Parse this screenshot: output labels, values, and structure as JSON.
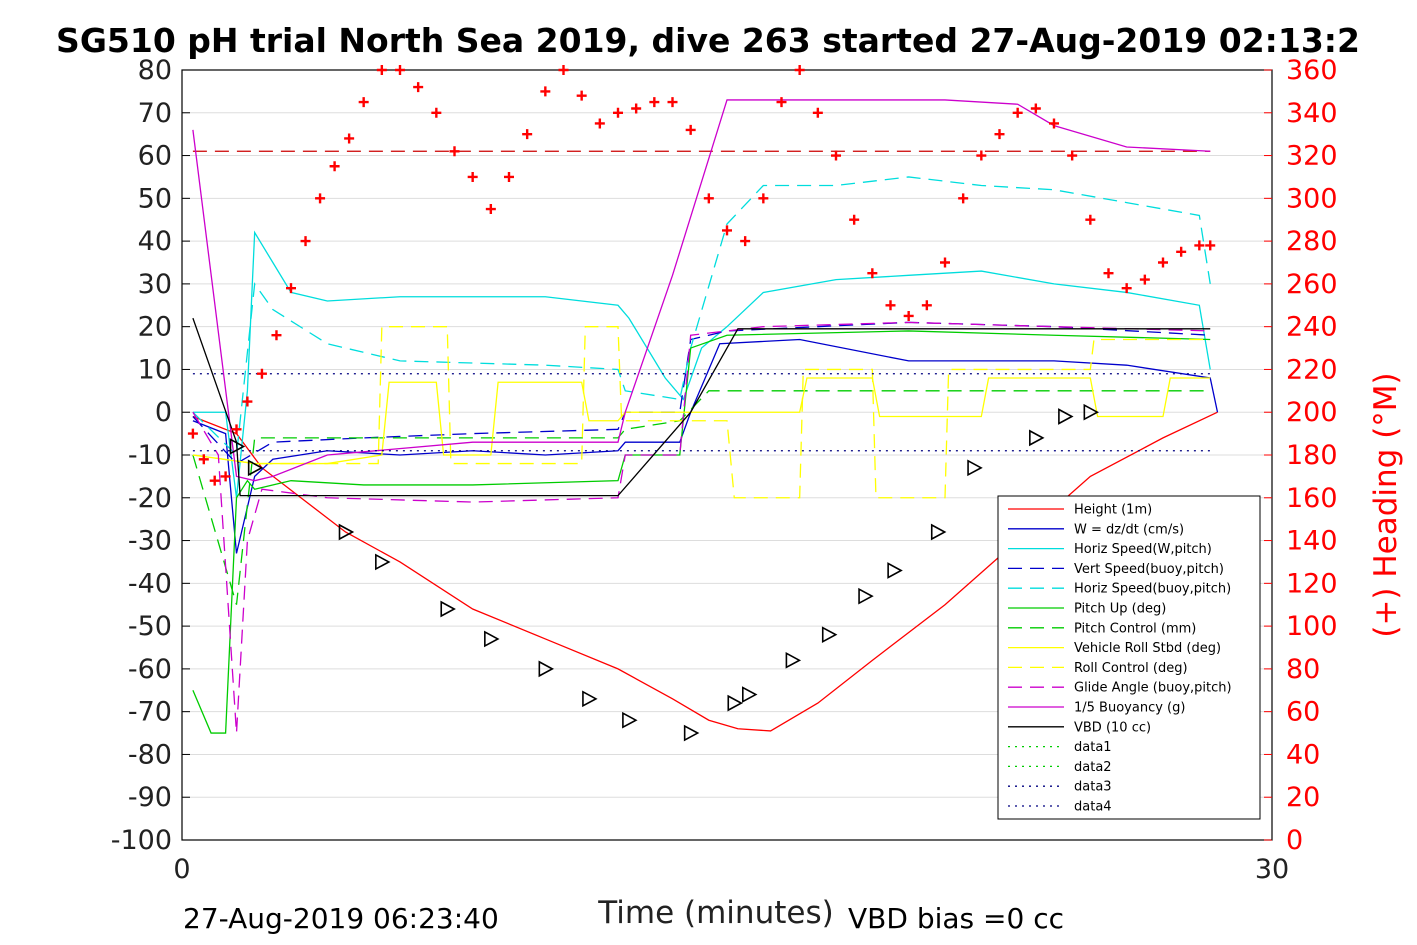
{
  "chart_data": {
    "type": "line",
    "title": "SG510 pH trial North Sea 2019, dive 263 started 27-Aug-2019 02:13:2",
    "xlabel": "Time (minutes)",
    "ylabel_right": "(+) Heading (°M)",
    "xlim": [
      0,
      30
    ],
    "ylim": [
      -100,
      80
    ],
    "ylim_right": [
      0,
      360
    ],
    "x_ticks": [
      "0",
      "30"
    ],
    "y_ticks": [
      "80",
      "70",
      "60",
      "50",
      "40",
      "30",
      "20",
      "10",
      "0",
      "-10",
      "-20",
      "-30",
      "-40",
      "-50",
      "-60",
      "-70",
      "-80",
      "-90",
      "-100"
    ],
    "y_ticks_right": [
      "360",
      "340",
      "320",
      "300",
      "280",
      "260",
      "240",
      "220",
      "200",
      "180",
      "160",
      "140",
      "120",
      "100",
      "80",
      "60",
      "40",
      "20",
      "0"
    ],
    "grid": "horizontal",
    "legend_position": "bottom-right",
    "footer_left": "27-Aug-2019 06:23:40",
    "footer_right": "VBD bias =0 cc",
    "heading_marker_color": "#ff0000",
    "series": [
      {
        "name": "Height (1m)",
        "color": "#ff0000",
        "dash": "solid",
        "x": [
          0.3,
          1.5,
          2.2,
          4.5,
          6,
          8,
          10,
          12,
          13.5,
          14.5,
          15.3,
          16.2,
          17.5,
          19,
          21,
          23,
          25,
          27,
          28.5
        ],
        "y": [
          -1,
          -5,
          -13,
          -28,
          -35,
          -46,
          -53,
          -60,
          -67,
          -72,
          -74,
          -74.5,
          -68,
          -58,
          -45,
          -30,
          -15,
          -6,
          0
        ]
      },
      {
        "name": "W = dz/dt (cm/s)",
        "color": "#0000cc",
        "dash": "solid",
        "x": [
          0.3,
          1.2,
          1.5,
          2.0,
          2.5,
          4,
          6,
          8,
          10,
          12,
          12.2,
          13.7,
          14,
          14.8,
          17,
          20,
          24,
          26,
          28.3,
          28.5
        ],
        "y": [
          -2,
          -5,
          -33,
          -15,
          -11,
          -9,
          -10,
          -9,
          -10,
          -9,
          -7,
          -7,
          0,
          16,
          17,
          12,
          12,
          11,
          8,
          0
        ]
      },
      {
        "name": "Horiz Speed(W,pitch)",
        "color": "#00dddd",
        "dash": "solid",
        "x": [
          0.3,
          1.2,
          1.5,
          1.8,
          2.0,
          2.5,
          3,
          4,
          6,
          8,
          10,
          12,
          12.3,
          13.3,
          13.8,
          14.3,
          15,
          16,
          18,
          20,
          22,
          24,
          26,
          28,
          28.3
        ],
        "y": [
          0,
          0,
          -20,
          5,
          42,
          35,
          28,
          26,
          27,
          27,
          27,
          25,
          22,
          8,
          3,
          15,
          20,
          28,
          31,
          32,
          33,
          30,
          28,
          25,
          10
        ]
      },
      {
        "name": "Vert Speed(buoy,pitch)",
        "color": "#0000cc",
        "dash": "dash",
        "x": [
          0.3,
          1.5,
          2.5,
          5,
          8,
          12,
          12.2,
          13.7,
          14,
          15,
          20,
          24,
          28.3
        ],
        "y": [
          -1,
          -12,
          -7,
          -6,
          -5,
          -4,
          0,
          0,
          17,
          19,
          21,
          20,
          18
        ]
      },
      {
        "name": "Horiz Speed(buoy,pitch)",
        "color": "#00dddd",
        "dash": "dash",
        "x": [
          0.3,
          1.5,
          2.0,
          2.5,
          4,
          6,
          10,
          12,
          12.2,
          13.7,
          14,
          15,
          16,
          18,
          20,
          22,
          24,
          26,
          28,
          28.3
        ],
        "y": [
          0,
          -10,
          30,
          24,
          16,
          12,
          11,
          10,
          5,
          3,
          15,
          44,
          53,
          53,
          55,
          53,
          52,
          49,
          46,
          30
        ]
      },
      {
        "name": "Pitch Up (deg)",
        "color": "#00cc00",
        "dash": "solid",
        "x": [
          0.3,
          0.8,
          1.2,
          1.5,
          1.8,
          2.0,
          3,
          5,
          8,
          12,
          12.2,
          13.7,
          14,
          15,
          20,
          24,
          28.3
        ],
        "y": [
          -65,
          -75,
          -75,
          -20,
          -16,
          -18,
          -16,
          -17,
          -17,
          -16,
          -10,
          -10,
          15,
          18,
          19,
          18,
          17
        ]
      },
      {
        "name": "Pitch Control (mm)",
        "color": "#00cc00",
        "dash": "dash",
        "x": [
          0.3,
          1.5,
          2,
          5,
          8,
          12,
          12.2,
          13.7,
          14.5,
          20,
          28.3
        ],
        "y": [
          -10,
          -45,
          -6,
          -6,
          -6,
          -6,
          -4,
          -2,
          5,
          5,
          5
        ]
      },
      {
        "name": "Vehicle Roll Stbd (deg)",
        "color": "#ffff00",
        "dash": "solid",
        "x": [
          0.3,
          2,
          4,
          5.5,
          5.7,
          7,
          7.2,
          8.5,
          8.7,
          11,
          11.2,
          12,
          12.2,
          15,
          17,
          17.2,
          19,
          19.2,
          22,
          22.2,
          25,
          25.2,
          27,
          27.2,
          28.3
        ],
        "y": [
          -10,
          -12,
          -12,
          -10,
          7,
          7,
          -10,
          -10,
          7,
          7,
          -2,
          -2,
          0,
          0,
          0,
          8,
          8,
          -1,
          -1,
          8,
          8,
          -1,
          -1,
          8,
          8
        ]
      },
      {
        "name": "Roll Control (deg)",
        "color": "#ffff00",
        "dash": "dash",
        "x": [
          0.3,
          2,
          5.4,
          5.5,
          7.3,
          7.4,
          11,
          11.1,
          12,
          12.1,
          15,
          15.2,
          17,
          17.1,
          19,
          19.1,
          21,
          21.1,
          25,
          25.1,
          28.3
        ],
        "y": [
          -10,
          -12,
          -12,
          20,
          20,
          -12,
          -12,
          20,
          20,
          -2,
          -2,
          -20,
          -20,
          10,
          10,
          -20,
          -20,
          10,
          10,
          17,
          17
        ]
      },
      {
        "name": "Glide Angle (buoy,pitch)",
        "color": "#cc00cc",
        "dash": "dash",
        "x": [
          0.3,
          1.0,
          1.5,
          1.8,
          2.2,
          4,
          8,
          12,
          12.2,
          13.7,
          14,
          16,
          20,
          24,
          28.3
        ],
        "y": [
          0,
          -10,
          -75,
          -30,
          -18,
          -20,
          -21,
          -20,
          -10,
          -10,
          18,
          20,
          21,
          20,
          19
        ]
      },
      {
        "name": "1/5 Buoyancy (g)",
        "color": "#cc00cc",
        "dash": "solid",
        "x": [
          0.3,
          1.5,
          2.0,
          2.5,
          4,
          8,
          12,
          12.2,
          13.5,
          15,
          15.2,
          20,
          21,
          23,
          24,
          26,
          28.3
        ],
        "y": [
          66,
          -15,
          -16,
          -15,
          -10,
          -7,
          -7,
          0,
          32,
          73,
          73,
          73,
          73,
          72,
          67,
          62,
          61
        ]
      },
      {
        "name": "VBD (10 cc)",
        "color": "#000000",
        "dash": "solid",
        "x": [
          0.3,
          1.5,
          1.6,
          12,
          14,
          15.3,
          28.3
        ],
        "y": [
          22,
          -7,
          -19.5,
          -19.5,
          0,
          19.5,
          19.5
        ]
      },
      {
        "name": "data1",
        "color": "#00cc00",
        "dash": "dot",
        "x": [],
        "y": []
      },
      {
        "name": "data2",
        "color": "#00cc00",
        "dash": "dot",
        "x": [],
        "y": []
      },
      {
        "name": "data3",
        "color": "#000080",
        "dash": "dot",
        "x": [
          0.3,
          28.3
        ],
        "y": [
          9,
          9
        ]
      },
      {
        "name": "data4",
        "color": "#000080",
        "dash": "dot",
        "x": [
          0.3,
          28.3
        ],
        "y": [
          -9,
          -9
        ]
      }
    ],
    "reference_line": {
      "color": "#cc0000",
      "dash": "dash",
      "x": [
        0.3,
        28.3
      ],
      "y": [
        61,
        61
      ]
    },
    "height_markers": {
      "x": [
        1.5,
        2.0,
        4.5,
        5.5,
        7.3,
        8.5,
        10,
        11.2,
        12.3,
        14,
        15.2,
        15.6,
        16.8,
        17.8,
        18.8,
        19.6,
        20.8,
        21.8,
        23.5,
        24.3,
        25.0
      ],
      "y": [
        -8,
        -13,
        -28,
        -35,
        -46,
        -53,
        -60,
        -67,
        -72,
        -75,
        -68,
        -66,
        -58,
        -52,
        -43,
        -37,
        -28,
        -13,
        -6,
        -1,
        0
      ]
    },
    "heading": {
      "x": [
        0.3,
        0.6,
        0.9,
        1.2,
        1.5,
        1.8,
        2.2,
        2.6,
        3.0,
        3.4,
        3.8,
        4.2,
        4.6,
        5.0,
        5.5,
        6.0,
        6.5,
        7.0,
        7.5,
        8.0,
        8.5,
        9.0,
        9.5,
        10.0,
        10.5,
        11.0,
        11.5,
        12.0,
        12.5,
        13.0,
        13.5,
        14.0,
        14.5,
        15.0,
        15.5,
        16.0,
        16.5,
        17.0,
        17.5,
        18.0,
        18.5,
        19.0,
        19.5,
        20.0,
        20.5,
        21.0,
        21.5,
        22.0,
        22.5,
        23.0,
        23.5,
        24.0,
        24.5,
        25.0,
        25.5,
        26.0,
        26.5,
        27.0,
        27.5,
        28.0,
        28.3
      ],
      "y": [
        190,
        178,
        168,
        170,
        192,
        205,
        218,
        236,
        258,
        280,
        300,
        315,
        328,
        345,
        360,
        360,
        352,
        340,
        322,
        310,
        295,
        310,
        330,
        350,
        360,
        348,
        335,
        340,
        342,
        345,
        345,
        332,
        300,
        285,
        280,
        300,
        345,
        360,
        340,
        320,
        290,
        265,
        250,
        245,
        250,
        270,
        300,
        320,
        330,
        340,
        342,
        335,
        320,
        290,
        265,
        258,
        262,
        270,
        275,
        278,
        278
      ]
    }
  }
}
